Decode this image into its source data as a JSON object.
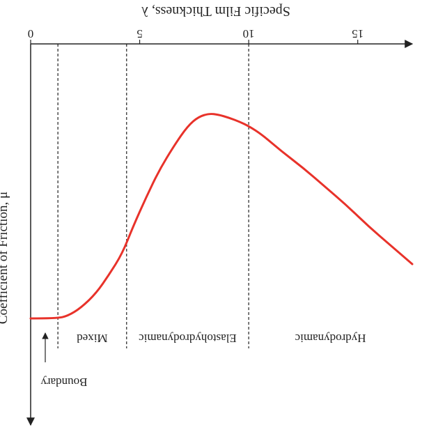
{
  "chart_data": {
    "type": "line",
    "orientation": "flipped vertically (upside-down figure)",
    "title": "",
    "xlabel": "Specific Film Thickness, λ",
    "ylabel": "Coefficient of Friction, μ",
    "x_ticks": [
      0,
      5,
      10,
      15
    ],
    "x_tick_labels": [
      "0",
      "5",
      "10",
      "15"
    ],
    "xlim": [
      0,
      17.5
    ],
    "y_ticks": [],
    "grid": false,
    "legend": "none",
    "series": [
      {
        "color": "#e8322a",
        "x": [
          0,
          1.2,
          1.7,
          2.3,
          3.0,
          3.6,
          4.2,
          4.7,
          5.3,
          5.9,
          6.6,
          7.2,
          7.7,
          8.2,
          8.6,
          9.1,
          9.6,
          10.0,
          10.6,
          11.5,
          12.5,
          13.5,
          14.5,
          15.5,
          16.5,
          17.5
        ],
        "y": [
          0.0,
          0.0,
          0.012,
          0.05,
          0.12,
          0.21,
          0.31,
          0.44,
          0.58,
          0.71,
          0.83,
          0.92,
          0.965,
          0.98,
          0.975,
          0.96,
          0.94,
          0.92,
          0.88,
          0.8,
          0.72,
          0.63,
          0.54,
          0.44,
          0.35,
          0.26
        ]
      }
    ],
    "regions": [
      {
        "label": "Boundary",
        "x_start": 0,
        "x_end": 1.25
      },
      {
        "label": "Mixed",
        "x_start": 1.25,
        "x_end": 4.4
      },
      {
        "label": "Elastohydrodynamic",
        "x_start": 4.4,
        "x_end": 10.0
      },
      {
        "label": "Hydrodynamic",
        "x_start": 10.0,
        "x_end": 17.5
      }
    ],
    "region_boundaries": [
      1.25,
      4.4,
      10.0
    ]
  },
  "colors": {
    "curve": "#e8322a",
    "axes": "#222222",
    "background": "#ffffff"
  }
}
